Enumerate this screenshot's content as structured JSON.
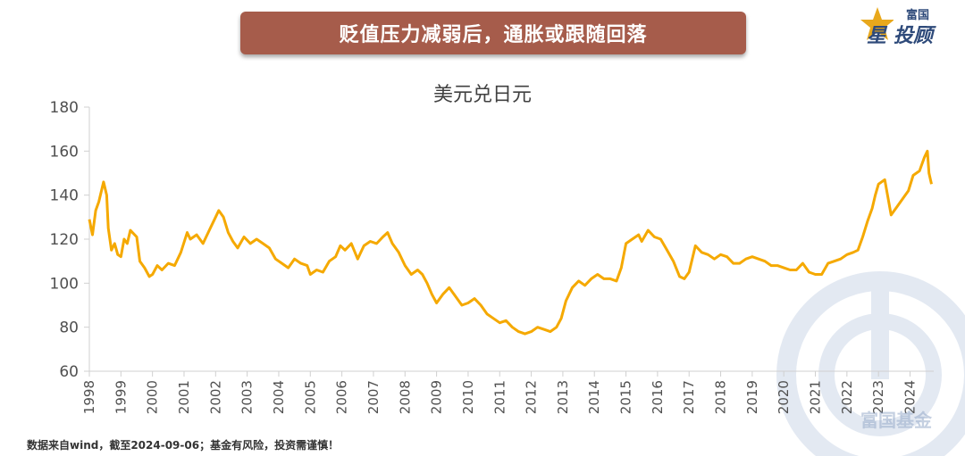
{
  "header": {
    "banner_title": "贬值压力减弱后，通胀或跟随回落"
  },
  "logo": {
    "small_text": "富国",
    "star_text": "星",
    "main_text": "投顾"
  },
  "footer": {
    "source_note": "数据来自wind，截至2024-09-06；基金有风险，投资需谨慎！"
  },
  "watermark": {
    "text": "富国基金"
  },
  "colors": {
    "banner": "#a65c4b",
    "line": "#f5a900",
    "axis": "#d0d0d0"
  },
  "chart_data": {
    "type": "line",
    "title": "美元兑日元",
    "xlabel": "",
    "ylabel": "",
    "ylim": [
      60,
      180
    ],
    "yticks": [
      60,
      80,
      100,
      120,
      140,
      160,
      180
    ],
    "xlim": [
      1998.0,
      2024.75
    ],
    "xticks": [
      "1998",
      "1999",
      "2000",
      "2001",
      "2002",
      "2003",
      "2004",
      "2005",
      "2006",
      "2007",
      "2008",
      "2009",
      "2010",
      "2011",
      "2012",
      "2013",
      "2014",
      "2015",
      "2016",
      "2017",
      "2018",
      "2019",
      "2020",
      "2021",
      "2022",
      "2023",
      "2024"
    ],
    "grid": false,
    "legend": "none",
    "series": [
      {
        "x": [
          1998.0,
          1998.1,
          1998.2,
          1998.3,
          1998.45,
          1998.55,
          1998.6,
          1998.7,
          1998.8,
          1998.9,
          1999.0,
          1999.1,
          1999.2,
          1999.3,
          1999.5,
          1999.6,
          1999.75,
          1999.9,
          2000.0,
          2000.15,
          2000.3,
          2000.5,
          2000.7,
          2000.9,
          2001.1,
          2001.2,
          2001.4,
          2001.6,
          2001.8,
          2002.0,
          2002.1,
          2002.25,
          2002.4,
          2002.55,
          2002.7,
          2002.9,
          2003.1,
          2003.3,
          2003.5,
          2003.7,
          2003.9,
          2004.1,
          2004.3,
          2004.5,
          2004.7,
          2004.9,
          2005.0,
          2005.2,
          2005.4,
          2005.6,
          2005.8,
          2005.95,
          2006.1,
          2006.3,
          2006.5,
          2006.7,
          2006.9,
          2007.1,
          2007.3,
          2007.45,
          2007.6,
          2007.8,
          2008.0,
          2008.2,
          2008.4,
          2008.55,
          2008.7,
          2008.85,
          2009.0,
          2009.2,
          2009.4,
          2009.6,
          2009.8,
          2010.0,
          2010.2,
          2010.4,
          2010.6,
          2010.8,
          2011.0,
          2011.2,
          2011.4,
          2011.6,
          2011.8,
          2012.0,
          2012.2,
          2012.4,
          2012.6,
          2012.8,
          2012.95,
          2013.1,
          2013.3,
          2013.5,
          2013.7,
          2013.9,
          2014.1,
          2014.3,
          2014.5,
          2014.7,
          2014.85,
          2015.0,
          2015.2,
          2015.4,
          2015.5,
          2015.7,
          2015.9,
          2016.1,
          2016.3,
          2016.5,
          2016.7,
          2016.85,
          2017.0,
          2017.2,
          2017.4,
          2017.6,
          2017.8,
          2018.0,
          2018.2,
          2018.4,
          2018.6,
          2018.8,
          2019.0,
          2019.2,
          2019.4,
          2019.6,
          2019.8,
          2020.0,
          2020.2,
          2020.4,
          2020.6,
          2020.8,
          2021.0,
          2021.2,
          2021.4,
          2021.6,
          2021.8,
          2022.0,
          2022.2,
          2022.35,
          2022.5,
          2022.65,
          2022.8,
          2022.9,
          2023.0,
          2023.2,
          2023.4,
          2023.6,
          2023.8,
          2023.95,
          2024.1,
          2024.3,
          2024.45,
          2024.55,
          2024.6,
          2024.68
        ],
        "y": [
          129,
          122,
          133,
          137,
          146,
          140,
          125,
          115,
          118,
          113,
          112,
          120,
          118,
          124,
          121,
          110,
          107,
          103,
          104,
          108,
          106,
          109,
          108,
          114,
          123,
          120,
          122,
          118,
          124,
          130,
          133,
          130,
          123,
          119,
          116,
          121,
          118,
          120,
          118,
          116,
          111,
          109,
          107,
          111,
          109,
          108,
          104,
          106,
          105,
          110,
          112,
          117,
          115,
          118,
          111,
          117,
          119,
          118,
          121,
          123,
          118,
          114,
          108,
          104,
          106,
          104,
          100,
          95,
          91,
          95,
          98,
          94,
          90,
          91,
          93,
          90,
          86,
          84,
          82,
          83,
          80,
          78,
          77,
          78,
          80,
          79,
          78,
          80,
          84,
          92,
          98,
          101,
          99,
          102,
          104,
          102,
          102,
          101,
          107,
          118,
          120,
          122,
          119,
          124,
          121,
          120,
          115,
          110,
          103,
          102,
          105,
          117,
          114,
          113,
          111,
          113,
          112,
          109,
          109,
          111,
          112,
          111,
          110,
          108,
          108,
          107,
          106,
          106,
          109,
          105,
          104,
          104,
          109,
          110,
          111,
          113,
          114,
          115,
          121,
          128,
          134,
          140,
          145,
          147,
          131,
          135,
          139,
          142,
          149,
          151,
          157,
          160,
          150,
          145
        ]
      }
    ]
  }
}
